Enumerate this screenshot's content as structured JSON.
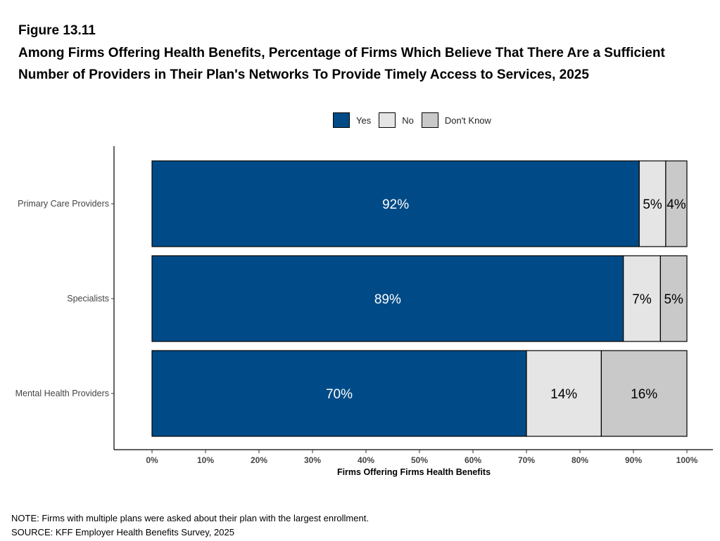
{
  "figure_label": "Figure 13.11",
  "chart_data": {
    "type": "bar",
    "orientation": "horizontal",
    "stacked": true,
    "title": "Among Firms Offering Health Benefits, Percentage of Firms Which Believe That There Are a Sufficient Number of Providers in Their Plan's Networks To Provide Timely Access to Services, 2025",
    "categories": [
      "Primary Care Providers",
      "Specialists",
      "Mental Health Providers"
    ],
    "series": [
      {
        "name": "Yes",
        "color": "#004B87",
        "label_color": "#FFFFFF",
        "values": [
          92,
          89,
          70
        ],
        "labels": [
          "92%",
          "89%",
          "70%"
        ]
      },
      {
        "name": "No",
        "color": "#E5E5E5",
        "label_color": "#000000",
        "values": [
          5,
          7,
          14
        ],
        "labels": [
          "5%",
          "7%",
          "14%"
        ]
      },
      {
        "name": "Don't Know",
        "color": "#C9C9C9",
        "label_color": "#000000",
        "values": [
          4,
          5,
          16
        ],
        "labels": [
          "4%",
          "5%",
          "16%"
        ]
      }
    ],
    "xlabel": "Firms Offering Firms Health Benefits",
    "ylabel": "",
    "xlim": [
      0,
      100
    ],
    "x_ticks": [
      "0%",
      "10%",
      "20%",
      "30%",
      "40%",
      "50%",
      "60%",
      "70%",
      "80%",
      "90%",
      "100%"
    ],
    "grid": false,
    "legend_position": "top"
  },
  "footer": {
    "note": "NOTE: Firms with multiple plans were asked about their plan with the largest enrollment.",
    "source": "SOURCE: KFF Employer Health Benefits Survey, 2025"
  }
}
